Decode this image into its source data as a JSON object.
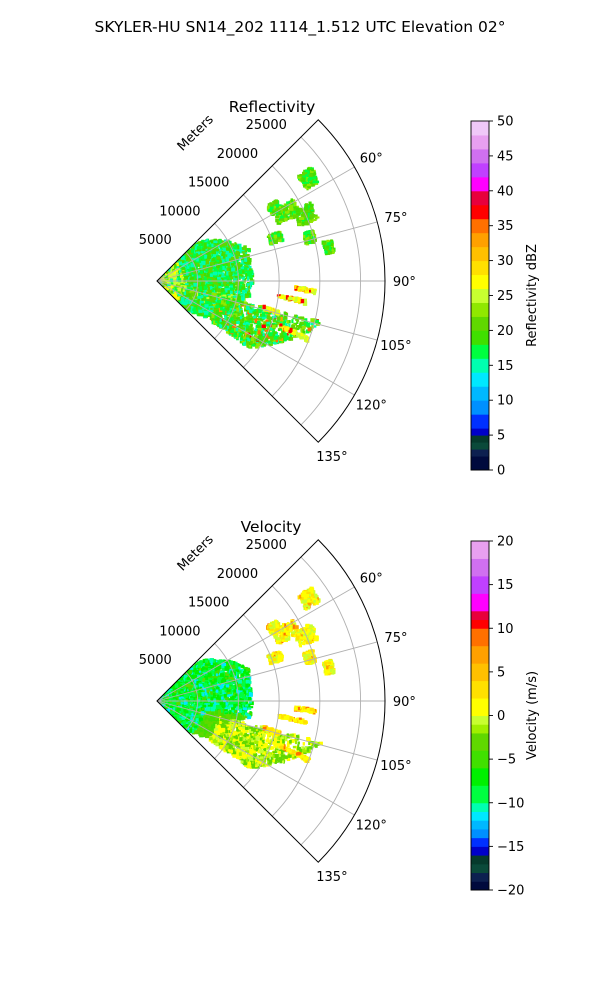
{
  "figure": {
    "title": "SKYLER-HU  SN14_202  1114_1.512 UTC Elevation 02°"
  },
  "chart_data": [
    {
      "type": "heatmap",
      "projection": "polar-sector",
      "title": "Reflectivity",
      "radial_label": "Meters",
      "radial_ticks": [
        5000,
        10000,
        15000,
        20000,
        25000
      ],
      "radial_tick_labels": [
        "5000",
        "10000",
        "15000",
        "20000",
        "25000"
      ],
      "rlim": [
        0,
        28000
      ],
      "azimuth_range_deg": [
        45,
        135
      ],
      "azimuth_ticks": [
        60,
        75,
        90,
        105,
        120,
        135
      ],
      "azimuth_tick_labels": [
        "60°",
        "75°",
        "90°",
        "105°",
        "120°",
        "135°"
      ],
      "grid": true,
      "colorbar": {
        "label": "Reflectivity dBZ",
        "range": [
          0,
          50
        ],
        "ticks": [
          0,
          5,
          10,
          15,
          20,
          25,
          30,
          35,
          40,
          45,
          50
        ],
        "tick_labels": [
          "0",
          "5",
          "10",
          "15",
          "20",
          "25",
          "30",
          "35",
          "40",
          "45",
          "50"
        ]
      },
      "colormap": [
        {
          "v": 0,
          "color": "#000a3d"
        },
        {
          "v": 2,
          "color": "#0d2050"
        },
        {
          "v": 3,
          "color": "#0b4a3a"
        },
        {
          "v": 4,
          "color": "#063a2c"
        },
        {
          "v": 5,
          "color": "#0000c8"
        },
        {
          "v": 6,
          "color": "#0030ff"
        },
        {
          "v": 8,
          "color": "#0090ff"
        },
        {
          "v": 10,
          "color": "#00b8ff"
        },
        {
          "v": 12,
          "color": "#00e8ff"
        },
        {
          "v": 14,
          "color": "#00ffb0"
        },
        {
          "v": 16,
          "color": "#00ff40"
        },
        {
          "v": 18,
          "color": "#40e000"
        },
        {
          "v": 20,
          "color": "#60d800"
        },
        {
          "v": 22,
          "color": "#90e800"
        },
        {
          "v": 24,
          "color": "#c8ff30"
        },
        {
          "v": 26,
          "color": "#ffff00"
        },
        {
          "v": 28,
          "color": "#ffe000"
        },
        {
          "v": 30,
          "color": "#ffc000"
        },
        {
          "v": 32,
          "color": "#ffa000"
        },
        {
          "v": 34,
          "color": "#ff7000"
        },
        {
          "v": 36,
          "color": "#ff0000"
        },
        {
          "v": 38,
          "color": "#e8003c"
        },
        {
          "v": 40,
          "color": "#ff00ff"
        },
        {
          "v": 42,
          "color": "#c040ff"
        },
        {
          "v": 44,
          "color": "#d070f0"
        },
        {
          "v": 46,
          "color": "#e8a0f0"
        },
        {
          "v": 48,
          "color": "#f0c8f8"
        },
        {
          "v": 50,
          "color": "#ffe8ff"
        }
      ]
    },
    {
      "type": "heatmap",
      "projection": "polar-sector",
      "title": "Velocity",
      "radial_label": "Meters",
      "radial_ticks": [
        5000,
        10000,
        15000,
        20000,
        25000
      ],
      "radial_tick_labels": [
        "5000",
        "10000",
        "15000",
        "20000",
        "25000"
      ],
      "rlim": [
        0,
        28000
      ],
      "azimuth_range_deg": [
        45,
        135
      ],
      "azimuth_ticks": [
        60,
        75,
        90,
        105,
        120,
        135
      ],
      "azimuth_tick_labels": [
        "60°",
        "75°",
        "90°",
        "105°",
        "120°",
        "135°"
      ],
      "grid": true,
      "colorbar": {
        "label": "Velocity (m/s)",
        "range": [
          -20,
          20
        ],
        "ticks": [
          -20,
          -15,
          -10,
          -5,
          0,
          5,
          10,
          15,
          20
        ],
        "tick_labels": [
          "−20",
          "−15",
          "−10",
          "−5",
          "0",
          "5",
          "10",
          "15",
          "20"
        ]
      },
      "colormap": [
        {
          "v": -20,
          "color": "#000a3d"
        },
        {
          "v": -19,
          "color": "#0d2050"
        },
        {
          "v": -18,
          "color": "#0b4a3a"
        },
        {
          "v": -17,
          "color": "#063a2c"
        },
        {
          "v": -16,
          "color": "#0000c8"
        },
        {
          "v": -15,
          "color": "#0030ff"
        },
        {
          "v": -14,
          "color": "#0090ff"
        },
        {
          "v": -13,
          "color": "#00b8ff"
        },
        {
          "v": -12,
          "color": "#00e8ff"
        },
        {
          "v": -11,
          "color": "#00ffb0"
        },
        {
          "v": -10,
          "color": "#00ff40"
        },
        {
          "v": -8,
          "color": "#00f000"
        },
        {
          "v": -6,
          "color": "#40e000"
        },
        {
          "v": -4,
          "color": "#60d800"
        },
        {
          "v": -2,
          "color": "#a0f000"
        },
        {
          "v": -1,
          "color": "#c8ff30"
        },
        {
          "v": 0,
          "color": "#ffff00"
        },
        {
          "v": 2,
          "color": "#ffe000"
        },
        {
          "v": 4,
          "color": "#ffc000"
        },
        {
          "v": 6,
          "color": "#ffa000"
        },
        {
          "v": 8,
          "color": "#ff7000"
        },
        {
          "v": 10,
          "color": "#ff0000"
        },
        {
          "v": 11,
          "color": "#e8003c"
        },
        {
          "v": 12,
          "color": "#ff00ff"
        },
        {
          "v": 14,
          "color": "#c040ff"
        },
        {
          "v": 16,
          "color": "#d070f0"
        },
        {
          "v": 18,
          "color": "#e8a0f0"
        },
        {
          "v": 20,
          "color": "#ffe8ff"
        }
      ]
    }
  ]
}
